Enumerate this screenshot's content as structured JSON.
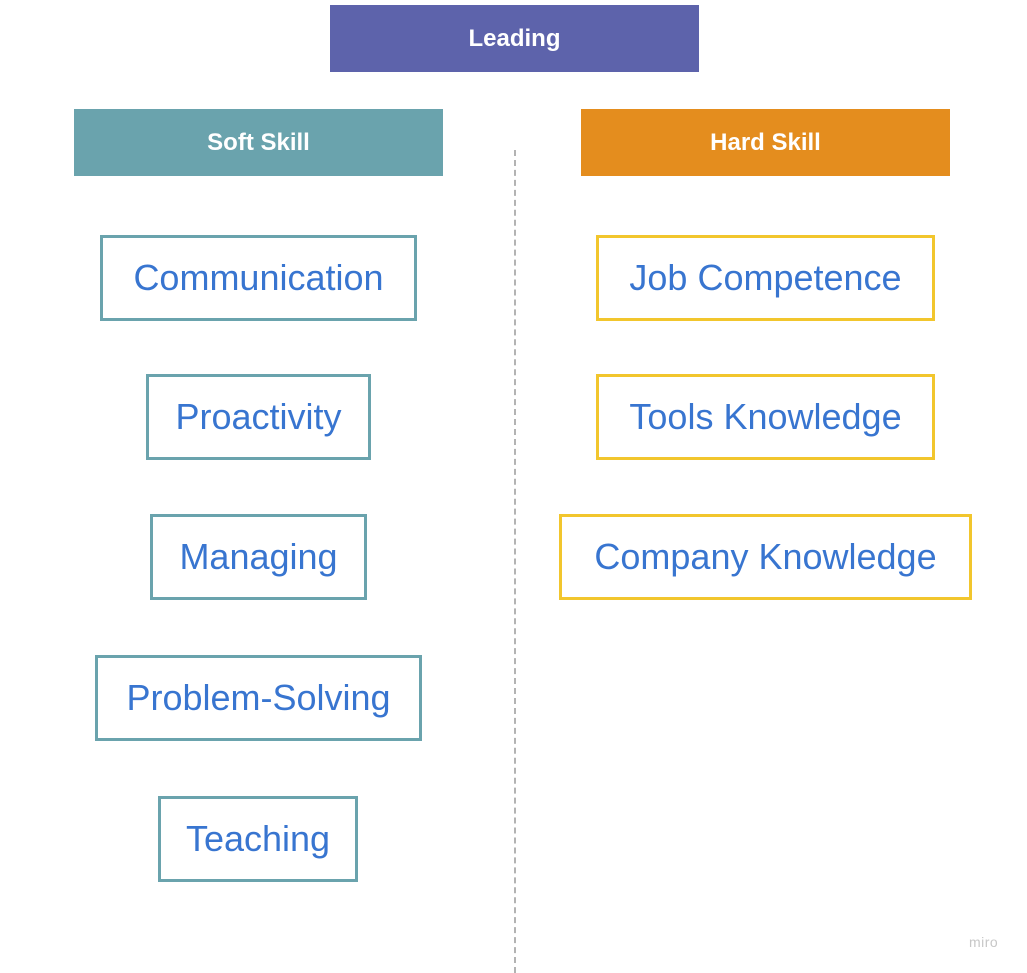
{
  "colors": {
    "leading_fill": "#5d63ab",
    "soft_fill": "#6aa3ad",
    "hard_fill": "#e48d1e",
    "soft_border": "#6aa3ad",
    "hard_border": "#f2c62d",
    "item_text": "#3875d0"
  },
  "leading": {
    "label": "Leading"
  },
  "soft_skill": {
    "label": "Soft Skill",
    "items": [
      "Communication",
      "Proactivity",
      "Managing",
      "Problem-Solving",
      "Teaching"
    ]
  },
  "hard_skill": {
    "label": "Hard Skill",
    "items": [
      "Job Competence",
      "Tools Knowledge",
      "Company Knowledge"
    ]
  },
  "watermark": "miro"
}
